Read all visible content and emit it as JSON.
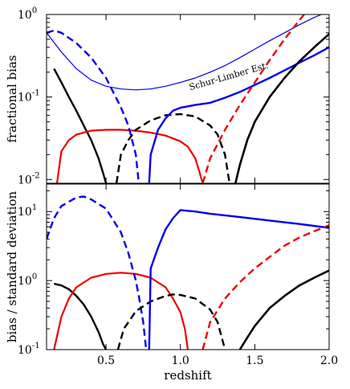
{
  "chart_data": [
    {
      "type": "line",
      "panel": "top",
      "ylabel": "fractional bias",
      "xlim": [
        0.1,
        2.0
      ],
      "ylim": [
        0.009,
        1.0
      ],
      "yscale": "log",
      "yticks": [
        {
          "value": 0.01,
          "base": "10",
          "exp": "-2"
        },
        {
          "value": 0.1,
          "base": "10",
          "exp": "-1"
        },
        {
          "value": 1.0,
          "base": "10",
          "exp": "0"
        }
      ],
      "annotations": [
        {
          "text": "Schur-Limber Est.",
          "x": 1.33,
          "y": 0.165,
          "rotate": -16
        }
      ],
      "series": [
        {
          "color": "#0000ee",
          "dash": "solid",
          "width": 1.2,
          "points": [
            [
              0.1,
              0.6
            ],
            [
              0.2,
              0.35
            ],
            [
              0.3,
              0.22
            ],
            [
              0.4,
              0.16
            ],
            [
              0.5,
              0.135
            ],
            [
              0.6,
              0.125
            ],
            [
              0.7,
              0.122
            ],
            [
              0.8,
              0.125
            ],
            [
              0.9,
              0.135
            ],
            [
              1.0,
              0.15
            ],
            [
              1.1,
              0.17
            ],
            [
              1.2,
              0.2
            ],
            [
              1.3,
              0.24
            ],
            [
              1.4,
              0.3
            ],
            [
              1.5,
              0.38
            ],
            [
              1.6,
              0.48
            ],
            [
              1.7,
              0.6
            ],
            [
              1.8,
              0.75
            ],
            [
              1.9,
              0.92
            ],
            [
              2.0,
              1.1
            ]
          ]
        },
        {
          "color": "#000000",
          "dash": "solid",
          "width": 2.4,
          "points": [
            [
              0.15,
              0.22
            ],
            [
              0.2,
              0.15
            ],
            [
              0.25,
              0.1
            ],
            [
              0.3,
              0.068
            ],
            [
              0.35,
              0.045
            ],
            [
              0.4,
              0.03
            ],
            [
              0.45,
              0.018
            ],
            [
              0.48,
              0.012
            ],
            [
              0.5,
              0.009
            ]
          ]
        },
        {
          "color": "#ee0000",
          "dash": "solid",
          "width": 2.2,
          "points": [
            [
              0.17,
              0.009
            ],
            [
              0.2,
              0.022
            ],
            [
              0.25,
              0.03
            ],
            [
              0.3,
              0.035
            ],
            [
              0.4,
              0.039
            ],
            [
              0.5,
              0.04
            ],
            [
              0.6,
              0.04
            ],
            [
              0.7,
              0.039
            ],
            [
              0.8,
              0.037
            ],
            [
              0.9,
              0.034
            ],
            [
              1.0,
              0.029
            ],
            [
              1.05,
              0.025
            ],
            [
              1.1,
              0.018
            ],
            [
              1.13,
              0.012
            ],
            [
              1.15,
              0.009
            ]
          ]
        },
        {
          "color": "#0000ee",
          "dash": "dashed",
          "width": 2.4,
          "points": [
            [
              0.1,
              0.6
            ],
            [
              0.15,
              0.64
            ],
            [
              0.2,
              0.6
            ],
            [
              0.3,
              0.45
            ],
            [
              0.4,
              0.3
            ],
            [
              0.5,
              0.17
            ],
            [
              0.6,
              0.075
            ],
            [
              0.65,
              0.045
            ],
            [
              0.7,
              0.02
            ],
            [
              0.72,
              0.009
            ]
          ]
        },
        {
          "color": "#000000",
          "dash": "dashed",
          "width": 2.4,
          "points": [
            [
              0.57,
              0.009
            ],
            [
              0.6,
              0.02
            ],
            [
              0.65,
              0.03
            ],
            [
              0.7,
              0.04
            ],
            [
              0.8,
              0.052
            ],
            [
              0.9,
              0.06
            ],
            [
              1.0,
              0.062
            ],
            [
              1.1,
              0.058
            ],
            [
              1.2,
              0.045
            ],
            [
              1.25,
              0.035
            ],
            [
              1.3,
              0.02
            ],
            [
              1.33,
              0.009
            ]
          ]
        },
        {
          "color": "#0000ee",
          "dash": "solid",
          "width": 2.4,
          "points": [
            [
              0.79,
              0.009
            ],
            [
              0.8,
              0.02
            ],
            [
              0.85,
              0.04
            ],
            [
              0.9,
              0.055
            ],
            [
              0.95,
              0.068
            ],
            [
              1.0,
              0.074
            ],
            [
              1.1,
              0.08
            ],
            [
              1.2,
              0.085
            ],
            [
              1.3,
              0.098
            ],
            [
              1.4,
              0.115
            ],
            [
              1.5,
              0.14
            ],
            [
              1.6,
              0.17
            ],
            [
              1.7,
              0.21
            ],
            [
              1.8,
              0.26
            ],
            [
              1.9,
              0.32
            ],
            [
              2.0,
              0.4
            ]
          ]
        },
        {
          "color": "#ee0000",
          "dash": "dashed",
          "width": 2.4,
          "points": [
            [
              1.15,
              0.009
            ],
            [
              1.2,
              0.018
            ],
            [
              1.3,
              0.04
            ],
            [
              1.4,
              0.08
            ],
            [
              1.5,
              0.15
            ],
            [
              1.6,
              0.28
            ],
            [
              1.7,
              0.5
            ],
            [
              1.8,
              0.85
            ],
            [
              1.85,
              1.1
            ]
          ]
        },
        {
          "color": "#000000",
          "dash": "solid",
          "width": 2.6,
          "points": [
            [
              1.37,
              0.009
            ],
            [
              1.4,
              0.015
            ],
            [
              1.45,
              0.03
            ],
            [
              1.5,
              0.05
            ],
            [
              1.6,
              0.1
            ],
            [
              1.7,
              0.17
            ],
            [
              1.8,
              0.27
            ],
            [
              1.9,
              0.4
            ],
            [
              2.0,
              0.58
            ]
          ]
        }
      ]
    },
    {
      "type": "line",
      "panel": "bottom",
      "xlabel": "redshift",
      "ylabel": "bias / standard deviation",
      "xlim": [
        0.1,
        2.0
      ],
      "ylim": [
        0.1,
        25
      ],
      "yscale": "log",
      "xticks": [
        "0.5",
        "1.0",
        "1.5",
        "2.0"
      ],
      "xtick_values": [
        0.5,
        1.0,
        1.5,
        2.0
      ],
      "yticks": [
        {
          "value": 0.1,
          "base": "10",
          "exp": "-1"
        },
        {
          "value": 1.0,
          "base": "10",
          "exp": "0"
        },
        {
          "value": 10.0,
          "base": "10",
          "exp": "1"
        }
      ],
      "series": [
        {
          "color": "#000000",
          "dash": "solid",
          "width": 2.4,
          "points": [
            [
              0.15,
              0.9
            ],
            [
              0.2,
              0.85
            ],
            [
              0.25,
              0.75
            ],
            [
              0.3,
              0.6
            ],
            [
              0.35,
              0.45
            ],
            [
              0.4,
              0.3
            ],
            [
              0.45,
              0.18
            ],
            [
              0.48,
              0.12
            ],
            [
              0.5,
              0.1
            ]
          ]
        },
        {
          "color": "#ee0000",
          "dash": "solid",
          "width": 2.2,
          "points": [
            [
              0.15,
              0.1
            ],
            [
              0.2,
              0.3
            ],
            [
              0.25,
              0.55
            ],
            [
              0.3,
              0.8
            ],
            [
              0.4,
              1.1
            ],
            [
              0.5,
              1.25
            ],
            [
              0.6,
              1.3
            ],
            [
              0.7,
              1.25
            ],
            [
              0.8,
              1.1
            ],
            [
              0.9,
              0.8
            ],
            [
              0.95,
              0.55
            ],
            [
              1.0,
              0.35
            ],
            [
              1.03,
              0.2
            ],
            [
              1.05,
              0.1
            ]
          ]
        },
        {
          "color": "#0000ee",
          "dash": "dashed",
          "width": 2.4,
          "points": [
            [
              0.1,
              4
            ],
            [
              0.15,
              8
            ],
            [
              0.2,
              12
            ],
            [
              0.3,
              16
            ],
            [
              0.35,
              16.5
            ],
            [
              0.4,
              15
            ],
            [
              0.5,
              11
            ],
            [
              0.6,
              5
            ],
            [
              0.65,
              2.5
            ],
            [
              0.7,
              1
            ],
            [
              0.72,
              0.6
            ],
            [
              0.75,
              0.25
            ],
            [
              0.77,
              0.1
            ]
          ]
        },
        {
          "color": "#000000",
          "dash": "dashed",
          "width": 2.4,
          "points": [
            [
              0.58,
              0.1
            ],
            [
              0.62,
              0.2
            ],
            [
              0.7,
              0.36
            ],
            [
              0.8,
              0.5
            ],
            [
              0.9,
              0.6
            ],
            [
              0.95,
              0.63
            ],
            [
              1.0,
              0.62
            ],
            [
              1.1,
              0.55
            ],
            [
              1.2,
              0.38
            ],
            [
              1.25,
              0.25
            ],
            [
              1.3,
              0.1
            ]
          ]
        },
        {
          "color": "#0000ee",
          "dash": "solid",
          "width": 2.4,
          "points": [
            [
              0.79,
              0.1
            ],
            [
              0.8,
              1.5
            ],
            [
              0.85,
              3
            ],
            [
              0.9,
              5.5
            ],
            [
              0.95,
              8
            ],
            [
              1.0,
              10.5
            ],
            [
              1.1,
              10
            ],
            [
              1.2,
              9.3
            ],
            [
              1.4,
              8.3
            ],
            [
              1.6,
              7.4
            ],
            [
              1.8,
              6.6
            ],
            [
              2.0,
              5.8
            ]
          ]
        },
        {
          "color": "#ee0000",
          "dash": "dashed",
          "width": 2.4,
          "points": [
            [
              1.15,
              0.1
            ],
            [
              1.2,
              0.25
            ],
            [
              1.3,
              0.55
            ],
            [
              1.4,
              0.95
            ],
            [
              1.5,
              1.5
            ],
            [
              1.6,
              2.2
            ],
            [
              1.7,
              3.2
            ],
            [
              1.8,
              4.2
            ],
            [
              1.9,
              5.2
            ],
            [
              2.0,
              6.3
            ]
          ]
        },
        {
          "color": "#000000",
          "dash": "solid",
          "width": 2.6,
          "points": [
            [
              1.4,
              0.1
            ],
            [
              1.45,
              0.15
            ],
            [
              1.5,
              0.22
            ],
            [
              1.6,
              0.4
            ],
            [
              1.7,
              0.6
            ],
            [
              1.8,
              0.85
            ],
            [
              1.9,
              1.1
            ],
            [
              2.0,
              1.4
            ]
          ]
        }
      ]
    }
  ]
}
